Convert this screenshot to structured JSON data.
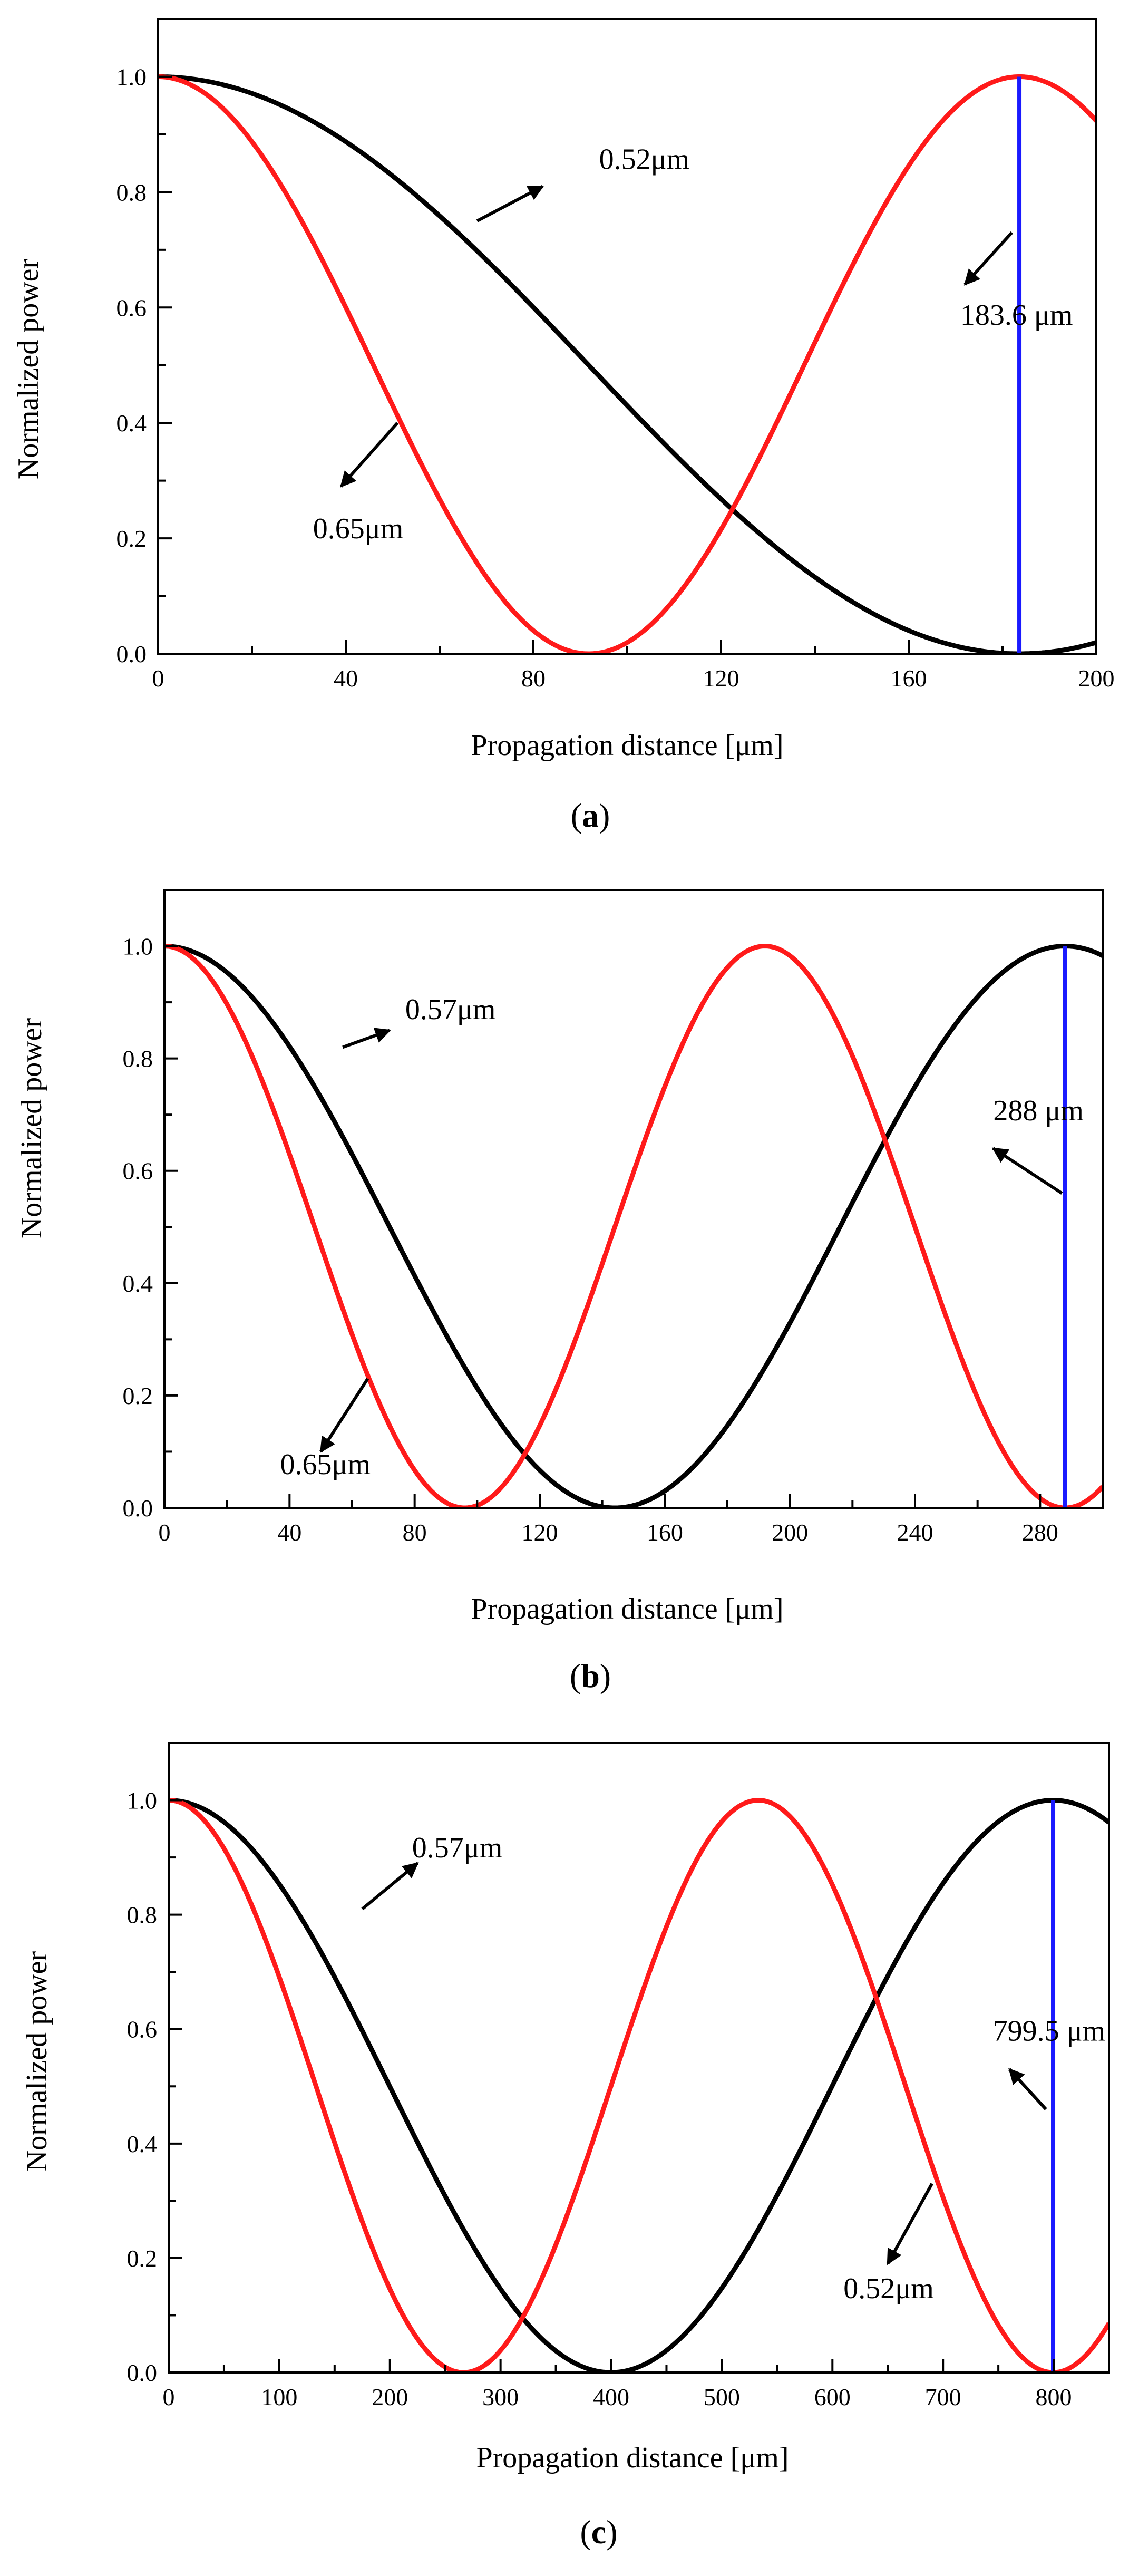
{
  "colors": {
    "red": "#ff1a1a",
    "black": "#000000",
    "blue": "#1a1aff"
  },
  "chart_data": [
    {
      "id": "a",
      "type": "line",
      "caption_letter": "a",
      "xlabel": "Propagation distance  [μm]",
      "ylabel": "Normalized power",
      "xlim": [
        0,
        200
      ],
      "ylim": [
        0,
        1.1
      ],
      "xticks": [
        0,
        40,
        80,
        120,
        160,
        200
      ],
      "yticks": [
        0.0,
        0.2,
        0.4,
        0.6,
        0.8,
        1.0
      ],
      "ytick_labels": [
        "0.0",
        "0.2",
        "0.4",
        "0.6",
        "0.8",
        "1.0"
      ],
      "series": [
        {
          "name": "0.52μm",
          "color": "black",
          "function": "cos2",
          "coupling_length": 183.6
        },
        {
          "name": "0.65μm",
          "color": "red",
          "function": "cos2",
          "coupling_length": 91.8
        }
      ],
      "vline": {
        "x": 183.6,
        "color": "blue",
        "label": "183.6 μm"
      },
      "annotations": [
        {
          "text": "0.52μm",
          "tail": [
            68,
            0.75
          ],
          "head": [
            82,
            0.81
          ],
          "label_at": [
            94,
            0.84
          ]
        },
        {
          "text": "0.65μm",
          "tail": [
            51,
            0.4
          ],
          "head": [
            39,
            0.29
          ],
          "label_at": [
            33,
            0.2
          ]
        },
        {
          "text": "183.6 μm",
          "tail": [
            182,
            0.73
          ],
          "head": [
            172,
            0.64
          ],
          "label_at": [
            171,
            0.57
          ]
        }
      ]
    },
    {
      "id": "b",
      "type": "line",
      "caption_letter": "b",
      "xlabel": "Propagation distance [μm]",
      "ylabel": "Normalized power",
      "xlim": [
        0,
        300
      ],
      "ylim": [
        0,
        1.1
      ],
      "xticks": [
        0,
        40,
        80,
        120,
        160,
        200,
        240,
        280
      ],
      "yticks": [
        0.0,
        0.2,
        0.4,
        0.6,
        0.8,
        1.0
      ],
      "ytick_labels": [
        "0.0",
        "0.2",
        "0.4",
        "0.6",
        "0.8",
        "1.0"
      ],
      "series": [
        {
          "name": "0.57μm",
          "color": "black",
          "function": "cos2",
          "coupling_length": 144
        },
        {
          "name": "0.65μm",
          "color": "red",
          "function": "cos2",
          "coupling_length": 96
        }
      ],
      "vline": {
        "x": 288,
        "color": "blue",
        "label": "288 μm"
      },
      "annotations": [
        {
          "text": "0.57μm",
          "tail": [
            57,
            0.82
          ],
          "head": [
            72,
            0.85
          ],
          "label_at": [
            77,
            0.87
          ]
        },
        {
          "text": "0.65μm",
          "tail": [
            65,
            0.23
          ],
          "head": [
            50,
            0.1
          ],
          "label_at": [
            37,
            0.06
          ]
        },
        {
          "text": "288 μm",
          "tail": [
            287,
            0.56
          ],
          "head": [
            265,
            0.64
          ],
          "label_at": [
            265,
            0.69
          ]
        }
      ]
    },
    {
      "id": "c",
      "type": "line",
      "caption_letter": "c",
      "xlabel": "Propagation distance  [μm]",
      "ylabel": "Normalized power",
      "xlim": [
        0,
        850
      ],
      "ylim": [
        0,
        1.1
      ],
      "xticks": [
        0,
        100,
        200,
        300,
        400,
        500,
        600,
        700,
        800
      ],
      "yticks": [
        0.0,
        0.2,
        0.4,
        0.6,
        0.8,
        1.0
      ],
      "ytick_labels": [
        "0.0",
        "0.2",
        "0.4",
        "0.6",
        "0.8",
        "1.0"
      ],
      "series": [
        {
          "name": "0.57μm",
          "color": "black",
          "function": "cos2",
          "coupling_length": 399.75
        },
        {
          "name": "0.52μm",
          "color": "red",
          "function": "cos2",
          "coupling_length": 266.5
        }
      ],
      "vline": {
        "x": 799.5,
        "color": "blue",
        "label": "799.5 μm"
      },
      "annotations": [
        {
          "text": "0.57μm",
          "tail": [
            175,
            0.81
          ],
          "head": [
            225,
            0.89
          ],
          "label_at": [
            220,
            0.9
          ]
        },
        {
          "text": "0.52μm",
          "tail": [
            690,
            0.33
          ],
          "head": [
            650,
            0.19
          ],
          "label_at": [
            610,
            0.13
          ]
        },
        {
          "text": "799.5 μm",
          "tail": [
            793,
            0.46
          ],
          "head": [
            760,
            0.53
          ],
          "label_at": [
            745,
            0.58
          ]
        }
      ]
    }
  ]
}
